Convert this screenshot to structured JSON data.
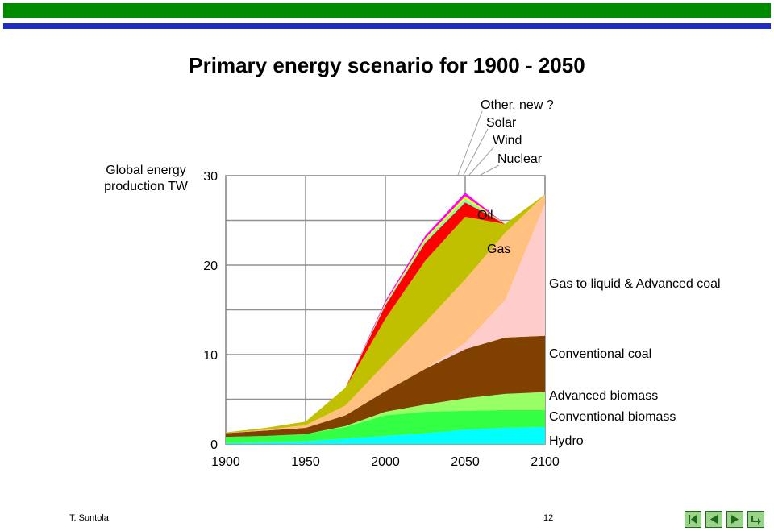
{
  "title": "Primary energy scenario for 1900 - 2050",
  "footer": {
    "author": "T. Suntola",
    "page": "12"
  },
  "nav_icons": [
    "first-icon",
    "prev-icon",
    "next-icon",
    "return-icon"
  ],
  "chart_data": {
    "type": "area",
    "stacked": true,
    "ylabel": "Global energy production TW",
    "xlabel": "",
    "xlim": [
      1900,
      2100
    ],
    "ylim": [
      0,
      30
    ],
    "x_ticks": [
      1900,
      1950,
      2000,
      2050,
      2100
    ],
    "y_ticks": [
      0,
      10,
      20,
      30
    ],
    "grid": true,
    "x": [
      1900,
      1925,
      1950,
      1975,
      2000,
      2025,
      2050,
      2075,
      2100
    ],
    "series": [
      {
        "name": "Hydro",
        "color": "#00ffff",
        "values": [
          0.1,
          0.2,
          0.3,
          0.6,
          0.9,
          1.2,
          1.6,
          1.8,
          1.9
        ]
      },
      {
        "name": "Conventional biomass",
        "color": "#33ff44",
        "values": [
          0.7,
          0.7,
          0.8,
          1.3,
          2.3,
          2.4,
          2.1,
          2.0,
          1.9
        ]
      },
      {
        "name": "Advanced biomass",
        "color": "#99ff66",
        "values": [
          0,
          0,
          0,
          0.1,
          0.4,
          0.8,
          1.4,
          1.8,
          2.0
        ]
      },
      {
        "name": "Conventional coal",
        "color": "#804000",
        "values": [
          0.4,
          0.6,
          0.7,
          1.2,
          2.3,
          4.0,
          5.5,
          6.3,
          6.3
        ]
      },
      {
        "name": "Gas to liquid & Advanced coal",
        "color": "#ffcccc",
        "values": [
          0,
          0,
          0,
          0,
          0,
          0,
          0.7,
          4.2,
          14.8
        ]
      },
      {
        "name": "Gas",
        "color": "#ffc080",
        "values": [
          0,
          0.1,
          0.3,
          1.1,
          3.1,
          5.2,
          7.1,
          7.5,
          1.0
        ]
      },
      {
        "name": "Oil",
        "color": "#c0c000",
        "values": [
          0.1,
          0.2,
          0.4,
          2.0,
          5.0,
          6.9,
          7.0,
          1.0,
          0
        ]
      },
      {
        "name": "Nuclear",
        "color": "#ff0000",
        "values": [
          0,
          0,
          0,
          0,
          1.5,
          2.0,
          1.6,
          0,
          0
        ]
      },
      {
        "name": "Wind",
        "color": "#80ffb0",
        "values": [
          0,
          0,
          0,
          0,
          0.2,
          0.3,
          0.4,
          0,
          0
        ]
      },
      {
        "name": "Solar",
        "color": "#ffff00",
        "values": [
          0,
          0,
          0,
          0,
          0.1,
          0.2,
          0.3,
          0,
          0
        ]
      },
      {
        "name": "Other, new ?",
        "color": "#ff00ff",
        "values": [
          0,
          0,
          0,
          0,
          0.2,
          0.3,
          0.4,
          0,
          0
        ]
      }
    ],
    "right_labels": [
      "Gas to liquid & Advanced coal",
      "Conventional coal",
      "Advanced biomass",
      "Conventional biomass",
      "Hydro"
    ],
    "inner_labels": [
      "Oil",
      "Gas"
    ],
    "top_labels": [
      "Other, new ?",
      "Solar",
      "Wind",
      "Nuclear"
    ]
  }
}
